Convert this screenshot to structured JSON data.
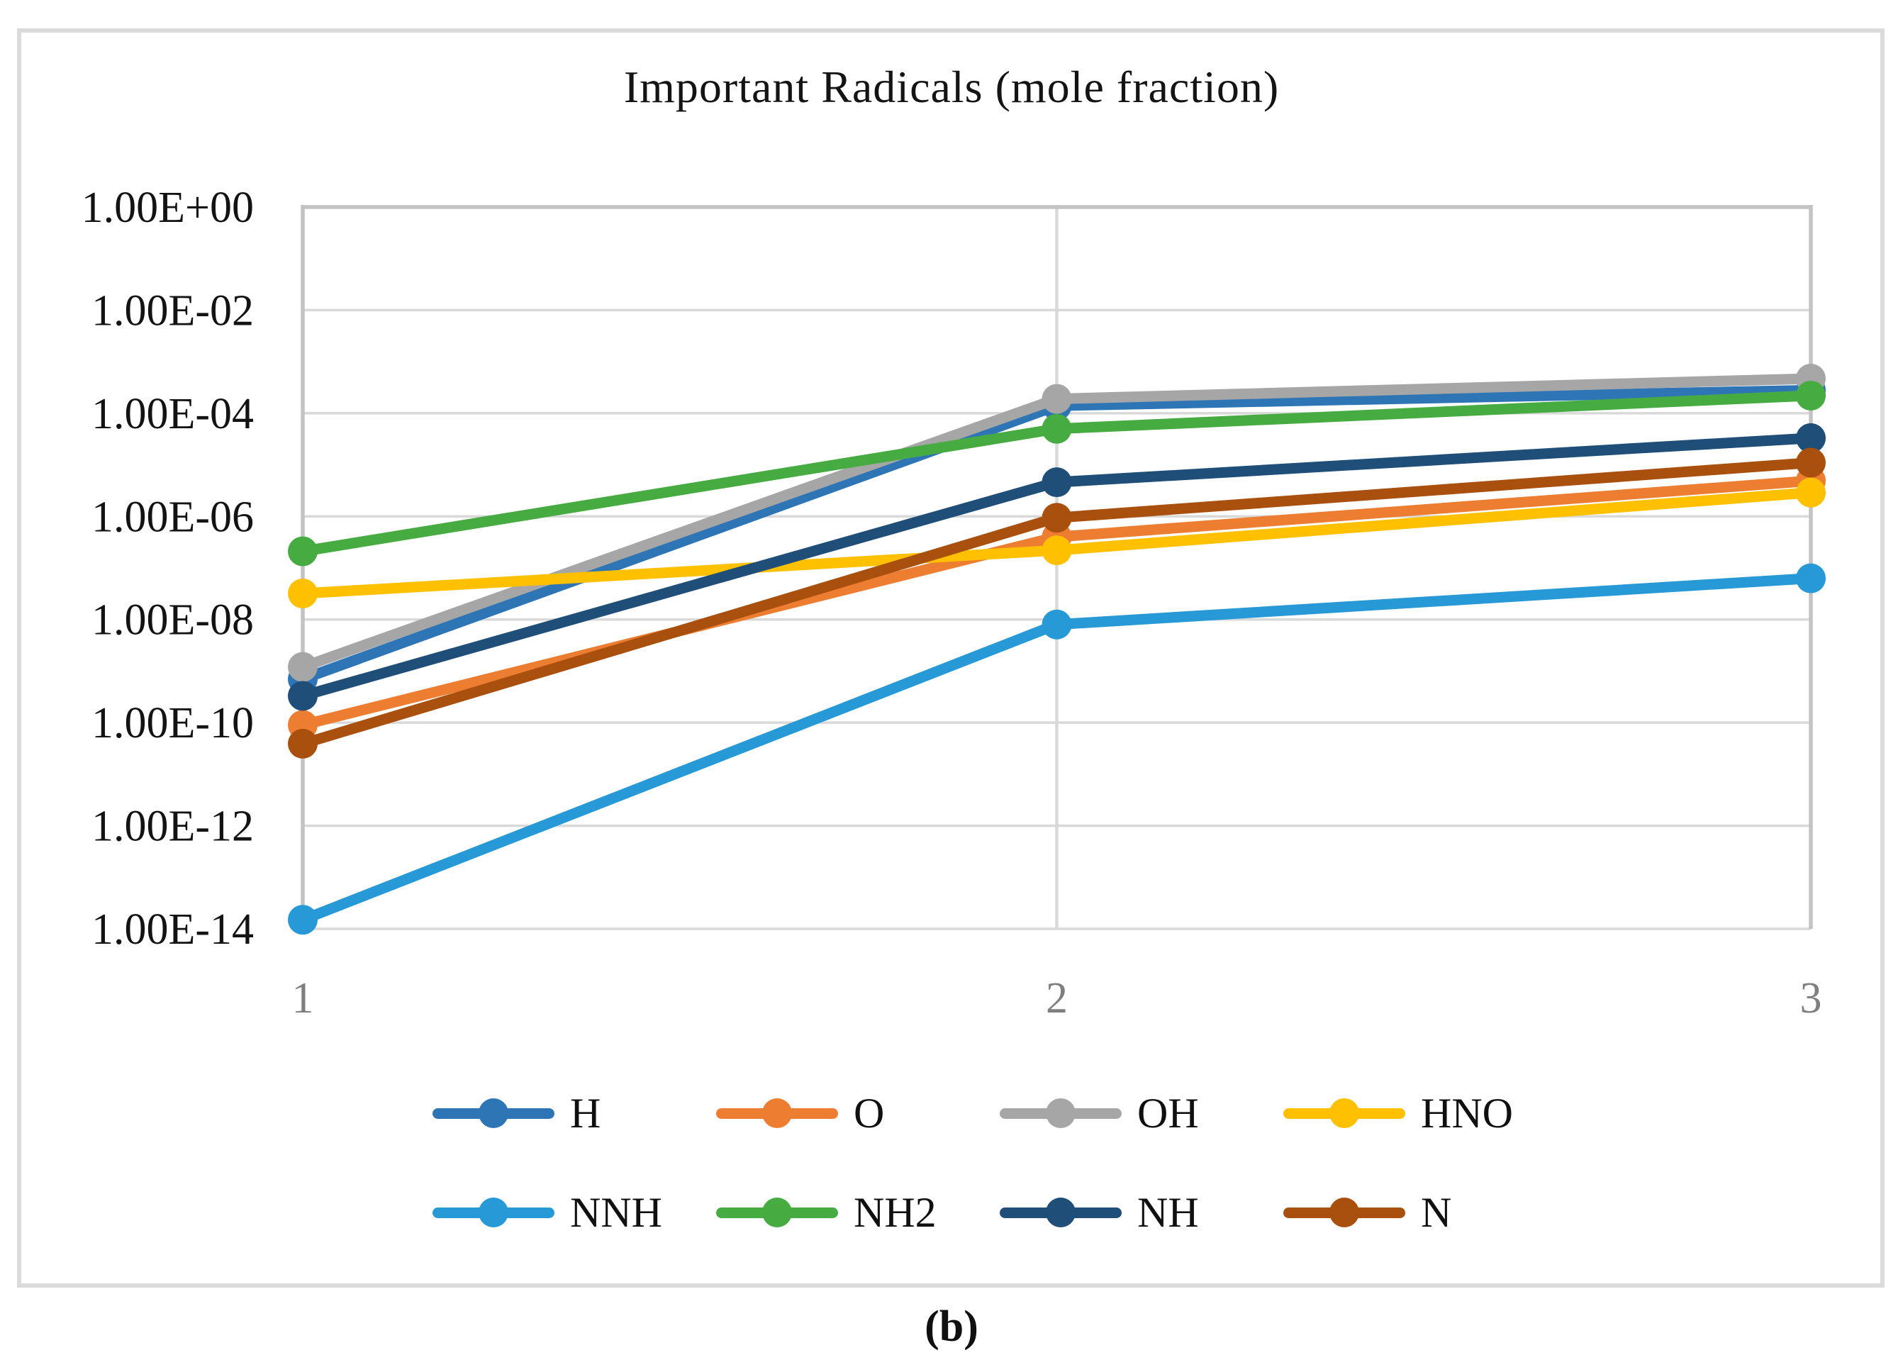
{
  "figure": {
    "caption": "(b)"
  },
  "chart_data": {
    "type": "line",
    "title": "Important Radicals (mole fraction)",
    "xlabel": "",
    "ylabel": "",
    "x": [
      1,
      2,
      3
    ],
    "xticks": [
      "1",
      "2",
      "3"
    ],
    "y_scale": "log",
    "ylim": [
      1e-14,
      1
    ],
    "yticks": [
      "1.00E+00",
      "1.00E-02",
      "1.00E-04",
      "1.00E-06",
      "1.00E-08",
      "1.00E-10",
      "1.00E-12",
      "1.00E-14"
    ],
    "grid": true,
    "grid_color": "#D9D9D9",
    "axis_color": "#C3C3C3",
    "tick_label_color": "#7F7F7F",
    "marker": "circle",
    "legend_position": "bottom",
    "series": [
      {
        "name": "H",
        "color": "#2E75B6",
        "values": [
          7e-10,
          0.00014,
          0.00028
        ]
      },
      {
        "name": "O",
        "color": "#ED7D31",
        "values": [
          9e-11,
          4e-07,
          4.9e-06
        ]
      },
      {
        "name": "OH",
        "color": "#A6A6A6",
        "values": [
          1.2e-09,
          0.00019,
          0.00047
        ]
      },
      {
        "name": "HNO",
        "color": "#FFC000",
        "values": [
          3.2e-08,
          2.2e-07,
          2.9e-06
        ]
      },
      {
        "name": "NNH",
        "color": "#2699D6",
        "values": [
          1.5e-14,
          8e-09,
          6.3e-08
        ]
      },
      {
        "name": "NH2",
        "color": "#46AC41",
        "values": [
          2.1e-07,
          5e-05,
          0.00022
        ]
      },
      {
        "name": "NH",
        "color": "#1F4E79",
        "values": [
          3.3e-10,
          4.6e-06,
          3.3e-05
        ]
      },
      {
        "name": "N",
        "color": "#A9500E",
        "values": [
          3.9e-11,
          9.4e-07,
          1.1e-05
        ]
      }
    ]
  }
}
